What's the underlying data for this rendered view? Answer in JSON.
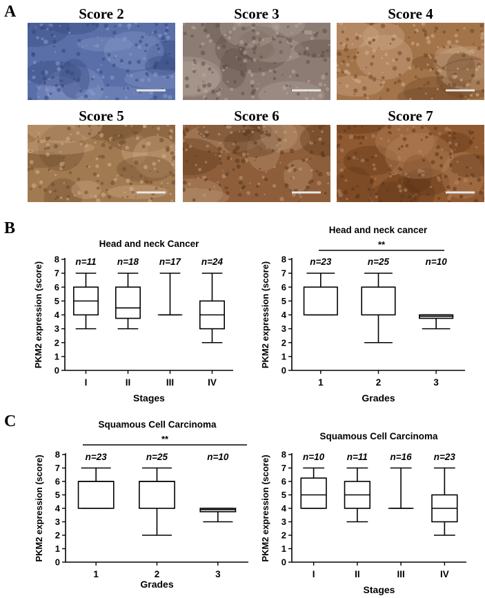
{
  "panel_labels": {
    "a": "A",
    "b": "B",
    "c": "C"
  },
  "micrographs": [
    {
      "title": "Score 2",
      "stain": "#5a6fa8",
      "shade": "#34457c",
      "tint": "#8a9ccc"
    },
    {
      "title": "Score 3",
      "stain": "#8d7c74",
      "shade": "#5d4c46",
      "tint": "#b8a79c"
    },
    {
      "title": "Score 4",
      "stain": "#a3744a",
      "shade": "#6e4526",
      "tint": "#d2b08e"
    },
    {
      "title": "Score 5",
      "stain": "#a27a52",
      "shade": "#6e4a2c",
      "tint": "#d3b08a"
    },
    {
      "title": "Score 6",
      "stain": "#8e5e3a",
      "shade": "#5a361d",
      "tint": "#bf9a7a"
    },
    {
      "title": "Score 7",
      "stain": "#8f5a31",
      "shade": "#5c3417",
      "tint": "#b88860"
    }
  ],
  "chart_data": [
    {
      "type": "box",
      "title": "Head and neck Cancer",
      "xlabel": "Stages",
      "ylabel": "PKM2 expression (score)",
      "ylim": [
        0,
        8
      ],
      "yticks": [
        "0",
        "1",
        "2",
        "3",
        "4",
        "5",
        "6",
        "7",
        "8"
      ],
      "categories": [
        "I",
        "II",
        "III",
        "IV"
      ],
      "n_labels": [
        "n=11",
        "n=18",
        "n=17",
        "n=24"
      ],
      "boxes": [
        {
          "min": 3,
          "q1": 4,
          "median": 5,
          "q3": 6,
          "max": 7
        },
        {
          "min": 3,
          "q1": 3.75,
          "median": 4.5,
          "q3": 6,
          "max": 7
        },
        {
          "min": 4,
          "q1": 4,
          "median": 4,
          "q3": 4,
          "max": 7
        },
        {
          "min": 2,
          "q1": 3,
          "median": 4,
          "q3": 5,
          "max": 7
        }
      ],
      "significance": ""
    },
    {
      "type": "box",
      "title": "Head and neck cancer",
      "xlabel": "Grades",
      "ylabel": "PKM2 expression (score)",
      "ylim": [
        0,
        8
      ],
      "yticks": [
        "0",
        "1",
        "2",
        "3",
        "4",
        "5",
        "6",
        "7",
        "8"
      ],
      "categories": [
        "1",
        "2",
        "3"
      ],
      "n_labels": [
        "n=23",
        "n=25",
        "n=10"
      ],
      "boxes": [
        {
          "min": 4,
          "q1": 4,
          "median": 6,
          "q3": 6,
          "max": 7
        },
        {
          "min": 2,
          "q1": 4,
          "median": 6,
          "q3": 6,
          "max": 7
        },
        {
          "min": 3,
          "q1": 3.75,
          "median": 3.9,
          "q3": 4,
          "max": 4
        }
      ],
      "significance": "**"
    },
    {
      "type": "box",
      "title": "Squamous Cell Carcinoma",
      "xlabel": "Grades",
      "ylabel": "PKM2 expression (score)",
      "ylim": [
        0,
        8
      ],
      "yticks": [
        "0",
        "1",
        "2",
        "3",
        "4",
        "5",
        "6",
        "7",
        "8"
      ],
      "categories": [
        "1",
        "2",
        "3"
      ],
      "n_labels": [
        "n=23",
        "n=25",
        "n=10"
      ],
      "boxes": [
        {
          "min": 4,
          "q1": 4,
          "median": 6,
          "q3": 6,
          "max": 7
        },
        {
          "min": 2,
          "q1": 4,
          "median": 6,
          "q3": 6,
          "max": 7
        },
        {
          "min": 3,
          "q1": 3.75,
          "median": 3.9,
          "q3": 4,
          "max": 4
        }
      ],
      "significance": "**"
    },
    {
      "type": "box",
      "title": "Squamous Cell Carcinoma",
      "xlabel": "Stages",
      "ylabel": "PKM2 expression (score)",
      "ylim": [
        0,
        8
      ],
      "yticks": [
        "0",
        "1",
        "2",
        "3",
        "4",
        "5",
        "6",
        "7",
        "8"
      ],
      "categories": [
        "I",
        "II",
        "III",
        "IV"
      ],
      "n_labels": [
        "n=10",
        "n=11",
        "n=16",
        "n=23"
      ],
      "boxes": [
        {
          "min": 4,
          "q1": 4,
          "median": 5,
          "q3": 6.25,
          "max": 7
        },
        {
          "min": 3,
          "q1": 4,
          "median": 5,
          "q3": 6,
          "max": 7
        },
        {
          "min": 4,
          "q1": 4,
          "median": 4,
          "q3": 4,
          "max": 7
        },
        {
          "min": 2,
          "q1": 3,
          "median": 4,
          "q3": 5,
          "max": 7
        }
      ],
      "significance": ""
    }
  ]
}
